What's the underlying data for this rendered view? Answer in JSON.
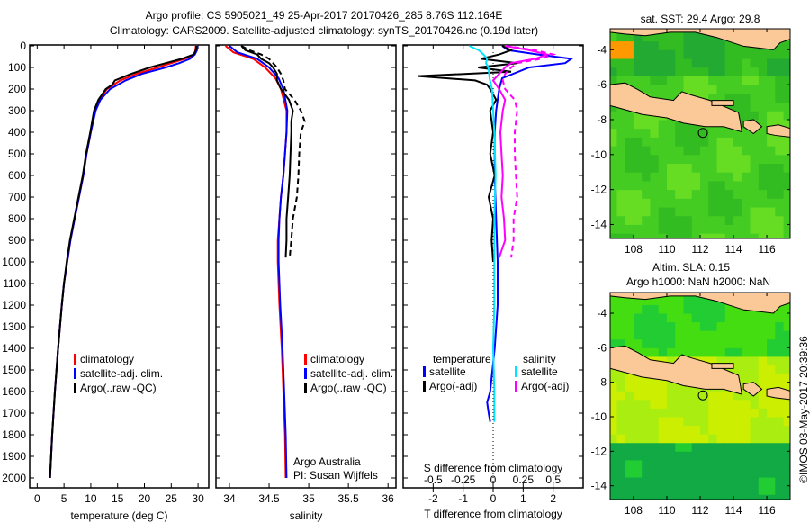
{
  "title_line1": "Argo profile: CS 5905021_49 25-Apr-2017 20170426_285 8.76S 112.164E",
  "title_line2": "Climatology: CARS2009. Satellite-adjusted climatology: synTS_20170426.nc (0.19d later)",
  "credit": "©IMOS 03-May-2017 20:39:36",
  "colors": {
    "climatology": "#ff0000",
    "satellite": "#0000ff",
    "argo": "#000000",
    "s_satellite": "#00e5ff",
    "s_argo": "#ff00ff"
  },
  "chart_data": [
    {
      "id": "temperature",
      "type": "line",
      "xlabel": "temperature (deg C)",
      "xlim": [
        -1.4,
        32
      ],
      "ylim": [
        0,
        2140
      ],
      "xticks": [
        0,
        5,
        10,
        15,
        20,
        25,
        30
      ],
      "xtick_labels": [
        "0",
        "5",
        "10",
        "15",
        "20",
        "25",
        "30"
      ],
      "yticks": [
        0,
        100,
        200,
        300,
        400,
        500,
        600,
        700,
        800,
        900,
        1000,
        1100,
        1200,
        1300,
        1400,
        1500,
        1600,
        1700,
        1800,
        1900,
        2000
      ],
      "ytick_labels": [
        "0",
        "100",
        "200",
        "300",
        "400",
        "500",
        "600",
        "700",
        "800",
        "900",
        "1000",
        "1100",
        "1200",
        "1300",
        "1400",
        "1500",
        "1600",
        "1700",
        "1800",
        "1900",
        "2000"
      ],
      "legend": [
        "climatology",
        "satellite-adj. clim.",
        "Argo(..raw -QC)"
      ],
      "series": [
        {
          "name": "climatology",
          "depth": [
            0,
            20,
            40,
            60,
            80,
            100,
            130,
            160,
            200,
            250,
            300,
            400,
            500,
            600,
            700,
            800,
            900,
            1000,
            1100,
            1200,
            1400,
            1600,
            1800,
            2000
          ],
          "values": [
            29.6,
            29.5,
            29.3,
            27.5,
            25,
            22.5,
            18.5,
            15.5,
            13,
            11.6,
            10.8,
            10,
            9.2,
            8.6,
            7.8,
            7,
            6.2,
            5.6,
            5,
            4.6,
            3.9,
            3.3,
            2.8,
            2.4
          ]
        },
        {
          "name": "satellite",
          "depth": [
            0,
            20,
            40,
            60,
            80,
            100,
            130,
            160,
            200,
            250,
            300,
            400,
            500,
            600,
            700,
            800,
            900,
            1000,
            1100,
            1200,
            1400,
            1600,
            1800,
            2000
          ],
          "values": [
            29.9,
            29.8,
            29.4,
            28.5,
            26.5,
            24,
            19.5,
            16.5,
            13.6,
            11.8,
            10.9,
            10,
            9.2,
            8.6,
            7.8,
            7,
            6.2,
            5.6,
            5,
            4.6,
            3.9,
            3.3,
            2.8,
            2.4
          ]
        },
        {
          "name": "Argo",
          "depth": [
            0,
            20,
            40,
            60,
            80,
            100,
            130,
            160,
            180,
            200,
            250,
            300,
            400,
            500,
            600,
            700,
            800,
            900,
            1000,
            1100,
            1200,
            1400,
            1600,
            1800,
            2000
          ],
          "values": [
            29.7,
            29.6,
            29.2,
            27,
            24,
            21,
            17.5,
            14.5,
            14,
            12.8,
            11.4,
            10.6,
            9.9,
            9.1,
            8.5,
            7.7,
            6.9,
            6.1,
            5.5,
            5,
            4.6,
            3.9,
            3.3,
            2.8,
            2.4
          ]
        }
      ]
    },
    {
      "id": "salinity",
      "type": "line",
      "xlabel": "salinity",
      "xlim": [
        33.83,
        36.1
      ],
      "ylim": [
        0,
        2140
      ],
      "xticks": [
        34,
        34.5,
        35,
        35.5,
        36
      ],
      "xtick_labels": [
        "34",
        "34.5",
        "35",
        "35.5",
        "36"
      ],
      "legend": [
        "climatology",
        "satellite-adj. clim.",
        "Argo(..raw -QC)"
      ],
      "annotation": [
        "Argo Australia",
        "PI: Susan Wijffels"
      ],
      "series": [
        {
          "name": "climatology",
          "depth": [
            0,
            30,
            60,
            100,
            150,
            200,
            300,
            400,
            500,
            600,
            700,
            800,
            900,
            1000,
            1200,
            1400,
            1600,
            1800,
            2000
          ],
          "values": [
            33.95,
            34.05,
            34.3,
            34.45,
            34.58,
            34.65,
            34.72,
            34.72,
            34.7,
            34.68,
            34.65,
            34.63,
            34.61,
            34.61,
            34.63,
            34.66,
            34.68,
            34.7,
            34.71
          ]
        },
        {
          "name": "satellite",
          "depth": [
            0,
            30,
            60,
            100,
            150,
            200,
            300,
            400,
            500,
            600,
            700,
            800,
            900,
            1000,
            1200,
            1400,
            1600,
            1800,
            2000
          ],
          "values": [
            34.0,
            34.1,
            34.35,
            34.5,
            34.62,
            34.68,
            34.73,
            34.72,
            34.7,
            34.68,
            34.65,
            34.63,
            34.62,
            34.62,
            34.64,
            34.67,
            34.69,
            34.71,
            34.72
          ]
        },
        {
          "name": "Argo",
          "dashed": false,
          "depth": [
            0,
            20,
            40,
            60,
            80,
            100,
            130,
            160,
            200,
            250,
            300,
            350,
            400,
            500,
            600,
            700,
            800,
            900,
            980
          ],
          "values": [
            34.15,
            34.2,
            34.35,
            34.4,
            34.5,
            34.55,
            34.6,
            34.6,
            34.65,
            34.75,
            34.8,
            34.78,
            34.78,
            34.77,
            34.76,
            34.74,
            34.72,
            34.72,
            34.71
          ]
        },
        {
          "name": "Argo raw",
          "dashed": true,
          "depth": [
            0,
            20,
            40,
            60,
            80,
            100,
            130,
            160,
            200,
            250,
            300,
            350,
            400,
            500,
            600,
            700,
            800,
            900,
            980
          ],
          "values": [
            34.15,
            34.25,
            34.4,
            34.5,
            34.55,
            34.6,
            34.65,
            34.68,
            34.7,
            34.82,
            34.9,
            34.95,
            34.9,
            34.88,
            34.87,
            34.85,
            34.8,
            34.78,
            34.76
          ]
        }
      ]
    },
    {
      "id": "difference",
      "type": "line",
      "xlabel": "T difference from climatology",
      "xlabel_top": "S difference from climatology",
      "xlim": [
        -3,
        3
      ],
      "ylim": [
        0,
        2140
      ],
      "xticks": [
        -2,
        -1,
        0,
        1,
        2
      ],
      "xtick_labels": [
        "-2",
        "-1",
        "0",
        "1",
        "2"
      ],
      "sticks": [
        -0.5,
        -0.25,
        0,
        0.25,
        0.5
      ],
      "stick_labels": [
        "-0.5",
        "-0.25",
        "0",
        "0.25",
        "0.5"
      ],
      "legend_t_title": "temperature",
      "legend_s_title": "salinity",
      "legend_t": [
        "satellite",
        "Argo(-adj)"
      ],
      "legend_s": [
        "satellite",
        "Argo(-adj)"
      ],
      "series": [
        {
          "name": "T satellite",
          "depth": [
            0,
            20,
            40,
            60,
            80,
            100,
            150,
            200,
            300,
            400,
            600,
            800,
            1000,
            1200,
            1400,
            1600,
            1650,
            1700,
            1740
          ],
          "values": [
            0.3,
            0.5,
            1.5,
            2.6,
            2.4,
            1.2,
            0.3,
            0.2,
            0.1,
            0.05,
            0.05,
            0.1,
            0.15,
            0.15,
            0.05,
            -0.1,
            -0.2,
            -0.15,
            -0.1
          ]
        },
        {
          "name": "T Argo",
          "depth": [
            0,
            20,
            40,
            60,
            80,
            100,
            120,
            140,
            160,
            180,
            200,
            250,
            300,
            400,
            500,
            600,
            700,
            800,
            900,
            1000
          ],
          "values": [
            0.3,
            0.6,
            0.2,
            -0.4,
            0.8,
            -0.5,
            0.6,
            -2.5,
            -0.6,
            -0.2,
            -0.1,
            0.1,
            -0.1,
            0.0,
            -0.1,
            0.05,
            -0.15,
            0.0,
            -0.05,
            0.0
          ]
        },
        {
          "name": "S satellite",
          "scale": "S",
          "depth": [
            0,
            20,
            40,
            60,
            80,
            100,
            150,
            200,
            300,
            400,
            600,
            800,
            1000,
            1200,
            1400,
            1600,
            1700,
            1740
          ],
          "values": [
            -0.2,
            -0.12,
            -0.08,
            -0.05,
            -0.06,
            -0.04,
            -0.03,
            -0.01,
            0.0,
            0.01,
            0.02,
            0.01,
            0.01,
            0.01,
            0.0,
            0.01,
            0.01,
            0.01
          ]
        },
        {
          "name": "S Argo",
          "scale": "S",
          "depth": [
            0,
            20,
            40,
            60,
            80,
            100,
            130,
            160,
            200,
            250,
            300,
            400,
            500,
            600,
            700,
            800,
            900,
            980
          ],
          "values": [
            0.1,
            0.3,
            0.45,
            0.35,
            0.15,
            0.1,
            0.05,
            0.0,
            0.05,
            0.1,
            0.08,
            0.06,
            0.07,
            0.08,
            0.07,
            0.09,
            0.1,
            0.05
          ]
        },
        {
          "name": "S Argo raw",
          "scale": "S",
          "dashed": true,
          "depth": [
            0,
            20,
            40,
            60,
            80,
            100,
            130,
            160,
            200,
            250,
            300,
            400,
            500,
            600,
            700,
            800,
            900,
            980
          ],
          "values": [
            0.1,
            0.35,
            0.5,
            0.4,
            0.2,
            0.15,
            0.1,
            0.08,
            0.1,
            0.18,
            0.2,
            0.18,
            0.18,
            0.19,
            0.2,
            0.17,
            0.17,
            0.15
          ]
        }
      ]
    },
    {
      "id": "sst_map",
      "type": "heatmap",
      "title": "sat. SST: 29.4 Argo: 29.8",
      "xlim": [
        106.6,
        117.4
      ],
      "ylim": [
        -14.8,
        -2.8
      ],
      "xticks": [
        108,
        110,
        112,
        114,
        116
      ],
      "xtick_labels": [
        "108",
        "110",
        "112",
        "114",
        "116"
      ],
      "yticks": [
        -4,
        -6,
        -8,
        -10,
        -12,
        -14
      ],
      "ytick_labels": [
        "-4",
        "-6",
        "-8",
        "-10",
        "-12",
        "-14"
      ],
      "argo_position": [
        112.164,
        -8.76
      ]
    },
    {
      "id": "sla_map",
      "type": "heatmap",
      "title_line1": "Altim. SLA: 0.15",
      "title_line2": "Argo h1000: NaN h2000: NaN",
      "xlim": [
        106.6,
        117.4
      ],
      "ylim": [
        -14.8,
        -2.8
      ],
      "xticks": [
        108,
        110,
        112,
        114,
        116
      ],
      "xtick_labels": [
        "108",
        "110",
        "112",
        "114",
        "116"
      ],
      "yticks": [
        -4,
        -6,
        -8,
        -10,
        -12,
        -14
      ],
      "ytick_labels": [
        "-4",
        "-6",
        "-8",
        "-10",
        "-12",
        "-14"
      ],
      "argo_position": [
        112.164,
        -8.76
      ]
    }
  ]
}
